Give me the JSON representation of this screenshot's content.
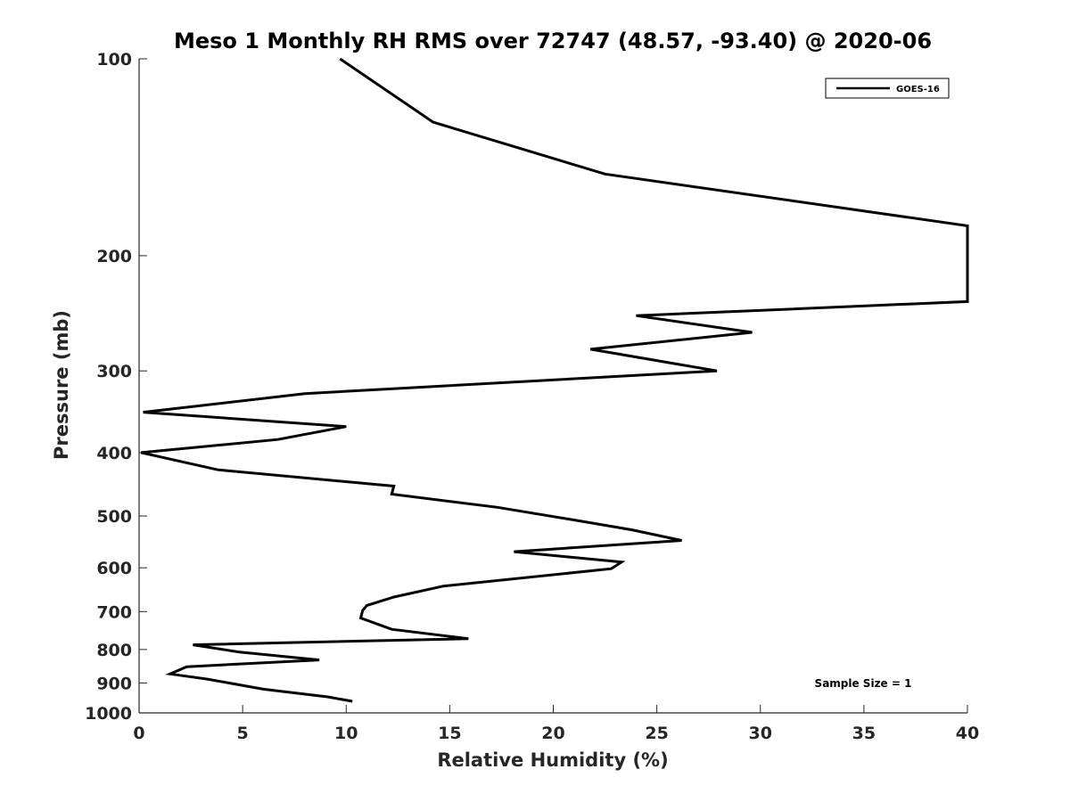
{
  "chart_data": {
    "type": "line",
    "title": "Meso 1 Monthly RH RMS over 72747 (48.57, -93.40) @ 2020-06",
    "xlabel": "Relative Humidity (%)",
    "ylabel": "Pressure (mb)",
    "xlim": [
      0,
      40
    ],
    "ylim": [
      100,
      1000
    ],
    "y_scale": "log",
    "y_reversed": true,
    "x_ticks": [
      0,
      5,
      10,
      15,
      20,
      25,
      30,
      35,
      40
    ],
    "y_ticks": [
      100,
      200,
      300,
      400,
      500,
      600,
      700,
      800,
      900,
      1000
    ],
    "legend": {
      "position": "top-right",
      "entries": [
        "GOES-16"
      ]
    },
    "annotation": "Sample Size = 1",
    "grid": false,
    "series": [
      {
        "name": "GOES-16",
        "color": "#000000",
        "points": [
          [
            9.7,
            100
          ],
          [
            14.2,
            125
          ],
          [
            22.5,
            150
          ],
          [
            40,
            180
          ],
          [
            40,
            235
          ],
          [
            24,
            247
          ],
          [
            29.6,
            262
          ],
          [
            21.8,
            278
          ],
          [
            27.9,
            300
          ],
          [
            8.0,
            325
          ],
          [
            0.2,
            347
          ],
          [
            10.0,
            365
          ],
          [
            6.7,
            382
          ],
          [
            0.1,
            400
          ],
          [
            3.8,
            425
          ],
          [
            12.3,
            450
          ],
          [
            12.2,
            463
          ],
          [
            17.3,
            485
          ],
          [
            21.0,
            507
          ],
          [
            23.8,
            525
          ],
          [
            26.2,
            545
          ],
          [
            18.1,
            567
          ],
          [
            23.3,
            588
          ],
          [
            22.8,
            602
          ],
          [
            14.7,
            640
          ],
          [
            12.3,
            665
          ],
          [
            11.0,
            685
          ],
          [
            10.8,
            697
          ],
          [
            10.7,
            716
          ],
          [
            12.2,
            745
          ],
          [
            15.9,
            770
          ],
          [
            2.6,
            787
          ],
          [
            4.8,
            807
          ],
          [
            8.7,
            830
          ],
          [
            2.3,
            850
          ],
          [
            1.5,
            872
          ],
          [
            3.3,
            888
          ],
          [
            6.0,
            920
          ],
          [
            9.1,
            945
          ],
          [
            10.3,
            960
          ]
        ]
      }
    ]
  }
}
